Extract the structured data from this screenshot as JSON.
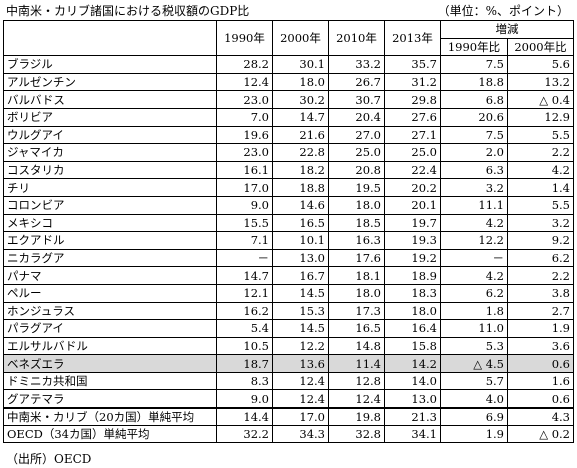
{
  "title": "中南米・カリブ諸国における税収額のGDP比",
  "unit": "（単位：%、ポイント）",
  "headers": {
    "years": [
      "1990年",
      "2000年",
      "2010年",
      "2013年"
    ],
    "change_group": "増減",
    "change_cols": [
      "1990年比",
      "2000年比"
    ]
  },
  "rows": [
    {
      "country": "ブラジル",
      "v1990": "28.2",
      "v2000": "30.1",
      "v2010": "33.2",
      "v2013": "35.7",
      "c1990": "7.5",
      "c2000": "5.6"
    },
    {
      "country": "アルゼンチン",
      "v1990": "12.4",
      "v2000": "18.0",
      "v2010": "26.7",
      "v2013": "31.2",
      "c1990": "18.8",
      "c2000": "13.2"
    },
    {
      "country": "バルバドス",
      "v1990": "23.0",
      "v2000": "30.2",
      "v2010": "30.7",
      "v2013": "29.8",
      "c1990": "6.8",
      "c2000": "△ 0.4"
    },
    {
      "country": "ボリビア",
      "v1990": "7.0",
      "v2000": "14.7",
      "v2010": "20.4",
      "v2013": "27.6",
      "c1990": "20.6",
      "c2000": "12.9"
    },
    {
      "country": "ウルグアイ",
      "v1990": "19.6",
      "v2000": "21.6",
      "v2010": "27.0",
      "v2013": "27.1",
      "c1990": "7.5",
      "c2000": "5.5"
    },
    {
      "country": "ジャマイカ",
      "v1990": "23.0",
      "v2000": "22.8",
      "v2010": "25.0",
      "v2013": "25.0",
      "c1990": "2.0",
      "c2000": "2.2"
    },
    {
      "country": "コスタリカ",
      "v1990": "16.1",
      "v2000": "18.2",
      "v2010": "20.8",
      "v2013": "22.4",
      "c1990": "6.3",
      "c2000": "4.2"
    },
    {
      "country": "チリ",
      "v1990": "17.0",
      "v2000": "18.8",
      "v2010": "19.5",
      "v2013": "20.2",
      "c1990": "3.2",
      "c2000": "1.4"
    },
    {
      "country": "コロンビア",
      "v1990": "9.0",
      "v2000": "14.6",
      "v2010": "18.0",
      "v2013": "20.1",
      "c1990": "11.1",
      "c2000": "5.5"
    },
    {
      "country": "メキシコ",
      "v1990": "15.5",
      "v2000": "16.5",
      "v2010": "18.5",
      "v2013": "19.7",
      "c1990": "4.2",
      "c2000": "3.2"
    },
    {
      "country": "エクアドル",
      "v1990": "7.1",
      "v2000": "10.1",
      "v2010": "16.3",
      "v2013": "19.3",
      "c1990": "12.2",
      "c2000": "9.2"
    },
    {
      "country": "ニカラグア",
      "v1990": "－",
      "v2000": "13.0",
      "v2010": "17.6",
      "v2013": "19.2",
      "c1990": "－",
      "c2000": "6.2"
    },
    {
      "country": "パナマ",
      "v1990": "14.7",
      "v2000": "16.7",
      "v2010": "18.1",
      "v2013": "18.9",
      "c1990": "4.2",
      "c2000": "2.2"
    },
    {
      "country": "ペルー",
      "v1990": "12.1",
      "v2000": "14.5",
      "v2010": "18.0",
      "v2013": "18.3",
      "c1990": "6.2",
      "c2000": "3.8"
    },
    {
      "country": "ホンジュラス",
      "v1990": "16.2",
      "v2000": "15.3",
      "v2010": "17.3",
      "v2013": "18.0",
      "c1990": "1.8",
      "c2000": "2.7"
    },
    {
      "country": "パラグアイ",
      "v1990": "5.4",
      "v2000": "14.5",
      "v2010": "16.5",
      "v2013": "16.4",
      "c1990": "11.0",
      "c2000": "1.9"
    },
    {
      "country": "エルサルバドル",
      "v1990": "10.5",
      "v2000": "12.2",
      "v2010": "14.8",
      "v2013": "15.8",
      "c1990": "5.3",
      "c2000": "3.6"
    },
    {
      "country": "ベネズエラ",
      "v1990": "18.7",
      "v2000": "13.6",
      "v2010": "11.4",
      "v2013": "14.2",
      "c1990": "△ 4.5",
      "c2000": "0.6",
      "highlight": true
    },
    {
      "country": "ドミニカ共和国",
      "v1990": "8.3",
      "v2000": "12.4",
      "v2010": "12.8",
      "v2013": "14.0",
      "c1990": "5.7",
      "c2000": "1.6"
    },
    {
      "country": "グアテマラ",
      "v1990": "9.0",
      "v2000": "12.4",
      "v2010": "12.4",
      "v2013": "13.0",
      "c1990": "4.0",
      "c2000": "0.6"
    }
  ],
  "summary_rows": [
    {
      "country": "中南米・カリブ（20カ国）単純平均",
      "v1990": "14.4",
      "v2000": "17.0",
      "v2010": "19.8",
      "v2013": "21.3",
      "c1990": "6.9",
      "c2000": "4.3"
    },
    {
      "country": "OECD（34カ国）単純平均",
      "v1990": "32.2",
      "v2000": "34.3",
      "v2010": "32.8",
      "v2013": "34.1",
      "c1990": "1.9",
      "c2000": "△ 0.2"
    }
  ],
  "source": "（出所）OECD"
}
